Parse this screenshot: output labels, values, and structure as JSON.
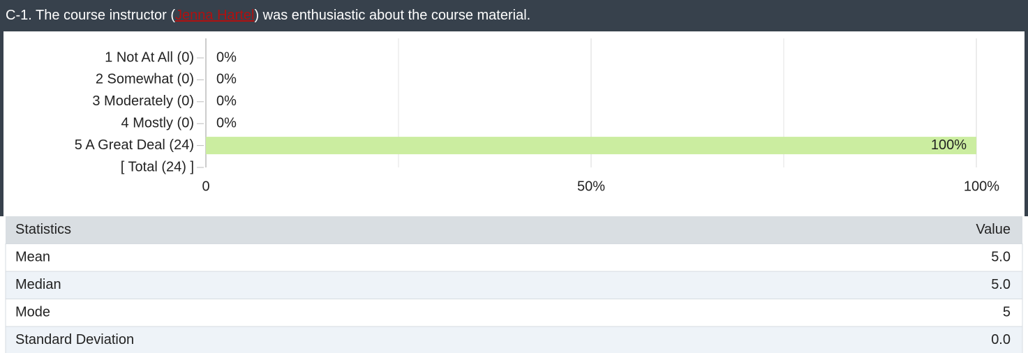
{
  "header": {
    "parts": [
      "C-1. The course instructor (",
      "Jenna Hartel",
      ") was enthusiastic about the course material."
    ]
  },
  "chart_data": {
    "type": "bar",
    "orientation": "horizontal",
    "categories": [
      "1 Not At All (0)",
      "2 Somewhat (0)",
      "3 Moderately (0)",
      "4 Mostly (0)",
      "5 A Great Deal (24)",
      "[ Total (24) ]"
    ],
    "values": [
      0,
      0,
      0,
      0,
      100,
      null
    ],
    "value_labels": [
      "0%",
      "0%",
      "0%",
      "0%",
      "100%",
      null
    ],
    "color": "#cbeda0",
    "xlim": [
      0,
      100
    ],
    "xticks": [
      0,
      {
        "value": 50,
        "label": "50%"
      },
      {
        "value": 100,
        "label": "100%"
      }
    ],
    "minor_grid": [
      25,
      75
    ],
    "grid": true
  },
  "table": {
    "header": [
      "Statistics",
      "Value"
    ],
    "rows": [
      [
        "Mean",
        "5.0"
      ],
      [
        "Median",
        "5.0"
      ],
      [
        "Mode",
        "5"
      ],
      [
        "Standard Deviation",
        "0.0"
      ]
    ]
  }
}
